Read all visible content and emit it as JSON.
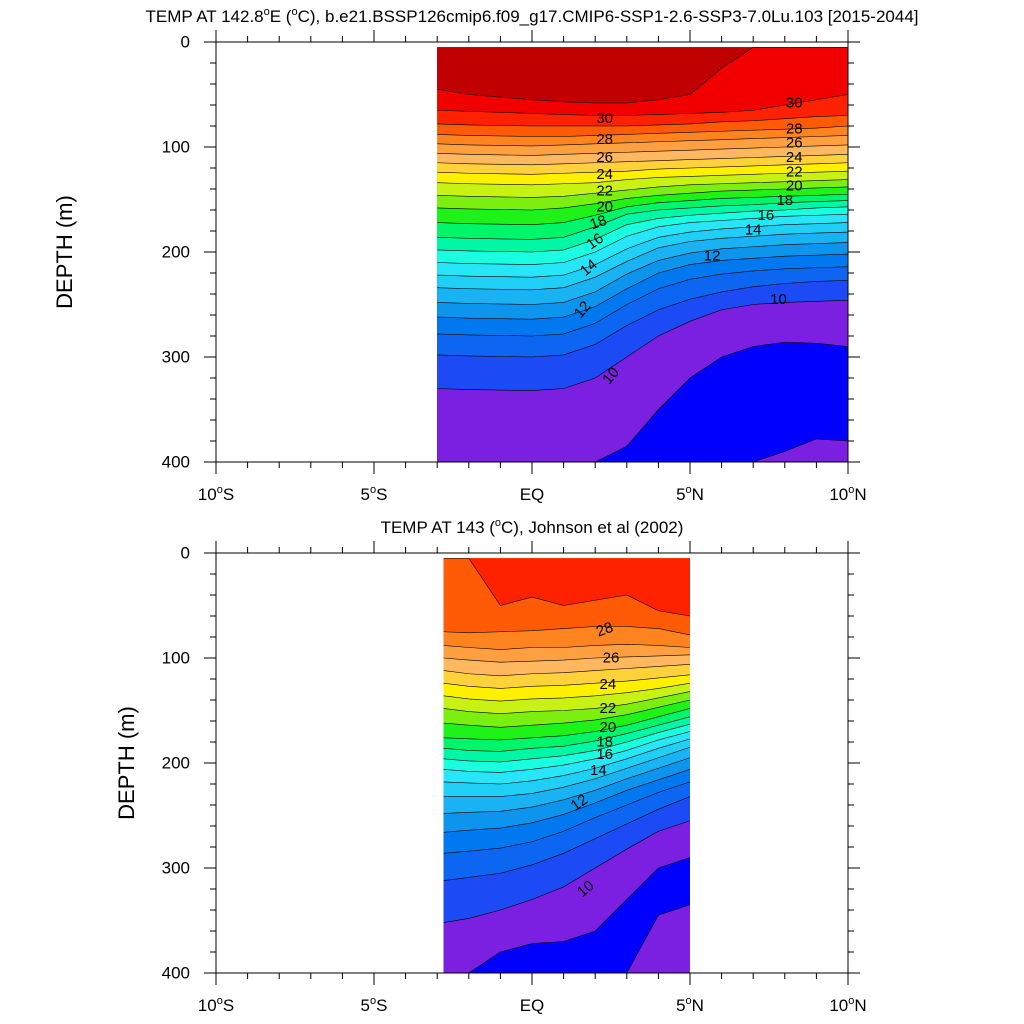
{
  "colors": {
    "levels": [
      8,
      10,
      11,
      12,
      13,
      14,
      15,
      16,
      17,
      18,
      19,
      20,
      21,
      22,
      23,
      24,
      25,
      26,
      27,
      28,
      29,
      30,
      31
    ],
    "fills": [
      "#7b1fe0",
      "#0000ff",
      "#1c4bf5",
      "#0d66f2",
      "#0078f0",
      "#0d95ee",
      "#19b2f2",
      "#20cff5",
      "#26e6f7",
      "#1affdf",
      "#00f7a5",
      "#00f56a",
      "#1ef218",
      "#7cef10",
      "#c8f214",
      "#fff000",
      "#ffd23c",
      "#ffb860",
      "#ffa040",
      "#ff8420",
      "#ff5a05",
      "#ff2200",
      "#f20000",
      "#c00000"
    ]
  },
  "chart_data": [
    {
      "type": "contour",
      "title": "TEMP AT 142.8°E (°C), b.e21.BSSP126cmip6.f09_g17.CMIP6-SSP1-2.6-SSP3-7.0Lu.103 [2015-2044]",
      "title_parts": {
        "pre": "TEMP AT 142.8",
        "sup1": "o",
        "mid": "E (",
        "sup2": "o",
        "post": "C), b.e21.BSSP126cmip6.f09_g17.CMIP6-SSP1-2.6-SSP3-7.0Lu.103 [2015-2044]"
      },
      "ylabel": "DEPTH (m)",
      "xlim": [
        -10,
        10
      ],
      "ylim": [
        400,
        0
      ],
      "x_ticks": [
        {
          "value": -10,
          "num": "10",
          "sup": "o",
          "suf": "S"
        },
        {
          "value": -5,
          "num": "5",
          "sup": "o",
          "suf": "S"
        },
        {
          "value": 0,
          "num": "EQ",
          "sup": "",
          "suf": ""
        },
        {
          "value": 5,
          "num": "5",
          "sup": "o",
          "suf": "N"
        },
        {
          "value": 10,
          "num": "10",
          "sup": "o",
          "suf": "N"
        }
      ],
      "y_ticks": [
        "0",
        "100",
        "200",
        "300",
        "400"
      ],
      "y_tick_values": [
        0,
        100,
        200,
        300,
        400
      ],
      "data_xrange": [
        -3,
        10
      ],
      "data_top_depth": 5,
      "x_nodes": [
        -3,
        -2,
        0,
        1,
        2,
        3,
        4,
        5,
        6,
        7,
        8,
        9,
        10
      ],
      "isotherm_depths": [
        {
          "level": 31,
          "depths": [
            45,
            50,
            55,
            57,
            58,
            58,
            55,
            50,
            25,
            5,
            5,
            5,
            5
          ]
        },
        {
          "level": 30,
          "depths": [
            65,
            66,
            68,
            69,
            70,
            70,
            69,
            68,
            67,
            65,
            60,
            55,
            50
          ]
        },
        {
          "level": 29,
          "depths": [
            78,
            79,
            80,
            80,
            80,
            80,
            79,
            78,
            76,
            75,
            73,
            71,
            70
          ]
        },
        {
          "level": 28,
          "depths": [
            88,
            89,
            90,
            90,
            89,
            88,
            87,
            86,
            85,
            84,
            83,
            82,
            80
          ]
        },
        {
          "level": 27,
          "depths": [
            97,
            98,
            99,
            98,
            97,
            96,
            95,
            94,
            93,
            92,
            91,
            90,
            89
          ]
        },
        {
          "level": 26,
          "depths": [
            106,
            107,
            108,
            107,
            106,
            105,
            104,
            103,
            102,
            101,
            100,
            99,
            98
          ]
        },
        {
          "level": 25,
          "depths": [
            115,
            116,
            117,
            116,
            115,
            114,
            113,
            112,
            111,
            110,
            109,
            108,
            107
          ]
        },
        {
          "level": 24,
          "depths": [
            124,
            125,
            126,
            125,
            124,
            123,
            121,
            120,
            119,
            118,
            117,
            116,
            115
          ]
        },
        {
          "level": 23,
          "depths": [
            134,
            135,
            136,
            135,
            134,
            131,
            129,
            128,
            127,
            126,
            125,
            124,
            123
          ]
        },
        {
          "level": 22,
          "depths": [
            146,
            147,
            148,
            147,
            144,
            141,
            138,
            136,
            135,
            134,
            133,
            132,
            131
          ]
        },
        {
          "level": 21,
          "depths": [
            158,
            159,
            160,
            158,
            154,
            149,
            146,
            144,
            142,
            141,
            140,
            139,
            138
          ]
        },
        {
          "level": 20,
          "depths": [
            172,
            173,
            174,
            172,
            165,
            157,
            153,
            151,
            149,
            148,
            147,
            146,
            145
          ]
        },
        {
          "level": 19,
          "depths": [
            186,
            187,
            188,
            186,
            176,
            164,
            160,
            158,
            156,
            155,
            153,
            152,
            151
          ]
        },
        {
          "level": 18,
          "depths": [
            198,
            199,
            200,
            198,
            188,
            174,
            168,
            165,
            163,
            161,
            160,
            158,
            157
          ]
        },
        {
          "level": 17,
          "depths": [
            210,
            211,
            212,
            210,
            200,
            185,
            176,
            172,
            170,
            168,
            166,
            165,
            164
          ]
        },
        {
          "level": 16,
          "depths": [
            222,
            223,
            224,
            222,
            212,
            197,
            186,
            181,
            178,
            176,
            174,
            173,
            172
          ]
        },
        {
          "level": 15,
          "depths": [
            234,
            235,
            236,
            234,
            224,
            209,
            196,
            190,
            187,
            185,
            183,
            182,
            181
          ]
        },
        {
          "level": 14,
          "depths": [
            248,
            249,
            250,
            248,
            238,
            221,
            208,
            201,
            197,
            195,
            193,
            192,
            191
          ]
        },
        {
          "level": 13,
          "depths": [
            262,
            263,
            264,
            262,
            252,
            235,
            220,
            212,
            208,
            206,
            204,
            203,
            202
          ]
        },
        {
          "level": 12,
          "depths": [
            278,
            279,
            280,
            278,
            268,
            250,
            235,
            226,
            221,
            218,
            216,
            215,
            214
          ]
        },
        {
          "level": 11,
          "depths": [
            298,
            299,
            300,
            298,
            288,
            270,
            255,
            245,
            238,
            233,
            230,
            228,
            227
          ]
        },
        {
          "level": 10,
          "depths": [
            330,
            331,
            332,
            330,
            320,
            300,
            280,
            266,
            255,
            250,
            248,
            247,
            246
          ]
        },
        {
          "level": 9,
          "depths": [
            400,
            400,
            400,
            400,
            400,
            385,
            350,
            320,
            300,
            290,
            286,
            287,
            290
          ]
        },
        {
          "level": 8,
          "depths": [
            400,
            400,
            400,
            400,
            400,
            400,
            400,
            400,
            400,
            400,
            390,
            378,
            380
          ]
        }
      ],
      "contour_labels": [
        {
          "text": "30",
          "x": 2.3,
          "y": 73,
          "rot": 0
        },
        {
          "text": "28",
          "x": 2.3,
          "y": 93,
          "rot": 0
        },
        {
          "text": "26",
          "x": 2.3,
          "y": 110,
          "rot": 0
        },
        {
          "text": "24",
          "x": 2.3,
          "y": 126,
          "rot": 0
        },
        {
          "text": "22",
          "x": 2.3,
          "y": 142,
          "rot": 0
        },
        {
          "text": "20",
          "x": 2.3,
          "y": 157,
          "rot": 0
        },
        {
          "text": "18",
          "x": 2.1,
          "y": 172,
          "rot": -20
        },
        {
          "text": "16",
          "x": 2.0,
          "y": 190,
          "rot": -35
        },
        {
          "text": "14",
          "x": 1.8,
          "y": 215,
          "rot": -40
        },
        {
          "text": "12",
          "x": 1.6,
          "y": 255,
          "rot": -50
        },
        {
          "text": "10",
          "x": 2.5,
          "y": 318,
          "rot": -50
        },
        {
          "text": "30",
          "x": 8.3,
          "y": 58,
          "rot": 0
        },
        {
          "text": "28",
          "x": 8.3,
          "y": 83,
          "rot": 0
        },
        {
          "text": "26",
          "x": 8.3,
          "y": 96,
          "rot": 0
        },
        {
          "text": "24",
          "x": 8.3,
          "y": 110,
          "rot": 0
        },
        {
          "text": "22",
          "x": 8.3,
          "y": 124,
          "rot": 0
        },
        {
          "text": "20",
          "x": 8.3,
          "y": 137,
          "rot": 0
        },
        {
          "text": "18",
          "x": 8.0,
          "y": 151,
          "rot": 0
        },
        {
          "text": "16",
          "x": 7.4,
          "y": 165,
          "rot": 0
        },
        {
          "text": "14",
          "x": 7.0,
          "y": 179,
          "rot": 0
        },
        {
          "text": "12",
          "x": 5.7,
          "y": 204,
          "rot": 0
        },
        {
          "text": "10",
          "x": 7.8,
          "y": 245,
          "rot": 0
        }
      ]
    },
    {
      "type": "contour",
      "title": "TEMP AT 143 (°C), Johnson et al (2002)",
      "title_parts": {
        "pre": "TEMP AT 143 (",
        "sup1": "o",
        "mid": "",
        "sup2": "",
        "post": "C), Johnson et al (2002)"
      },
      "ylabel": "DEPTH (m)",
      "xlim": [
        -10,
        10
      ],
      "ylim": [
        400,
        0
      ],
      "x_ticks": [
        {
          "value": -10,
          "num": "10",
          "sup": "o",
          "suf": "S"
        },
        {
          "value": -5,
          "num": "5",
          "sup": "o",
          "suf": "S"
        },
        {
          "value": 0,
          "num": "EQ",
          "sup": "",
          "suf": ""
        },
        {
          "value": 5,
          "num": "5",
          "sup": "o",
          "suf": "N"
        },
        {
          "value": 10,
          "num": "10",
          "sup": "o",
          "suf": "N"
        }
      ],
      "y_ticks": [
        "0",
        "100",
        "200",
        "300",
        "400"
      ],
      "y_tick_values": [
        0,
        100,
        200,
        300,
        400
      ],
      "data_xrange": [
        -2.8,
        5
      ],
      "data_top_depth": 5,
      "x_nodes": [
        -2.8,
        -2,
        -1,
        0,
        1,
        2,
        3,
        4,
        5
      ],
      "isotherm_depths": [
        {
          "level": 29,
          "depths": [
            5,
            5,
            50,
            42,
            50,
            45,
            40,
            55,
            60
          ]
        },
        {
          "level": 28,
          "depths": [
            75,
            76,
            75,
            74,
            72,
            70,
            70,
            72,
            78
          ]
        },
        {
          "level": 27,
          "depths": [
            88,
            90,
            92,
            90,
            90,
            88,
            87,
            88,
            90
          ]
        },
        {
          "level": 26,
          "depths": [
            100,
            102,
            104,
            103,
            102,
            100,
            99,
            98,
            97
          ]
        },
        {
          "level": 25,
          "depths": [
            112,
            115,
            117,
            115,
            114,
            112,
            110,
            108,
            106
          ]
        },
        {
          "level": 24,
          "depths": [
            124,
            127,
            129,
            127,
            126,
            124,
            122,
            119,
            116
          ]
        },
        {
          "level": 23,
          "depths": [
            136,
            139,
            141,
            139,
            138,
            136,
            133,
            129,
            124
          ]
        },
        {
          "level": 22,
          "depths": [
            148,
            151,
            153,
            151,
            150,
            148,
            144,
            138,
            132
          ]
        },
        {
          "level": 21,
          "depths": [
            162,
            164,
            166,
            164,
            162,
            159,
            154,
            147,
            140
          ]
        },
        {
          "level": 20,
          "depths": [
            176,
            177,
            178,
            176,
            174,
            170,
            164,
            156,
            148
          ]
        },
        {
          "level": 19,
          "depths": [
            186,
            188,
            189,
            186,
            184,
            179,
            172,
            164,
            156
          ]
        },
        {
          "level": 18,
          "depths": [
            196,
            198,
            199,
            196,
            193,
            188,
            180,
            171,
            163
          ]
        },
        {
          "level": 17,
          "depths": [
            206,
            208,
            209,
            206,
            202,
            196,
            188,
            178,
            170
          ]
        },
        {
          "level": 16,
          "depths": [
            218,
            219,
            220,
            217,
            212,
            205,
            196,
            186,
            177
          ]
        },
        {
          "level": 15,
          "depths": [
            232,
            232,
            232,
            229,
            223,
            215,
            205,
            195,
            185
          ]
        },
        {
          "level": 14,
          "depths": [
            248,
            247,
            246,
            242,
            235,
            226,
            215,
            205,
            195
          ]
        },
        {
          "level": 13,
          "depths": [
            266,
            264,
            262,
            257,
            249,
            238,
            226,
            216,
            206
          ]
        },
        {
          "level": 12,
          "depths": [
            286,
            284,
            281,
            275,
            265,
            252,
            240,
            228,
            218
          ]
        },
        {
          "level": 11,
          "depths": [
            312,
            309,
            305,
            297,
            286,
            272,
            258,
            244,
            232
          ]
        },
        {
          "level": 10,
          "depths": [
            352,
            348,
            340,
            330,
            318,
            300,
            282,
            265,
            255
          ]
        },
        {
          "level": 9,
          "depths": [
            400,
            400,
            380,
            372,
            370,
            360,
            330,
            300,
            290
          ]
        },
        {
          "level": 8,
          "depths": [
            400,
            400,
            400,
            400,
            400,
            400,
            400,
            345,
            335
          ]
        }
      ],
      "contour_labels": [
        {
          "text": "28",
          "x": 2.3,
          "y": 73,
          "rot": -20
        },
        {
          "text": "26",
          "x": 2.5,
          "y": 100,
          "rot": 0
        },
        {
          "text": "24",
          "x": 2.4,
          "y": 125,
          "rot": 0
        },
        {
          "text": "22",
          "x": 2.4,
          "y": 148,
          "rot": 0
        },
        {
          "text": "20",
          "x": 2.4,
          "y": 166,
          "rot": 0
        },
        {
          "text": "18",
          "x": 2.3,
          "y": 180,
          "rot": 0
        },
        {
          "text": "16",
          "x": 2.3,
          "y": 192,
          "rot": 0
        },
        {
          "text": "14",
          "x": 2.1,
          "y": 207,
          "rot": 0
        },
        {
          "text": "12",
          "x": 1.5,
          "y": 238,
          "rot": -35
        },
        {
          "text": "10",
          "x": 1.7,
          "y": 320,
          "rot": -40
        }
      ]
    }
  ]
}
